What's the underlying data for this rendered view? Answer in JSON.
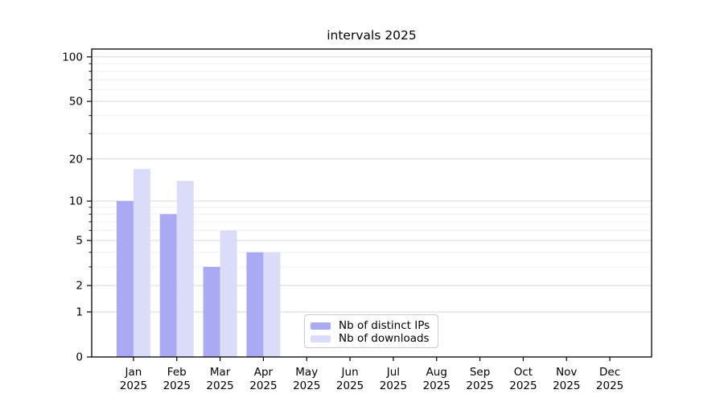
{
  "chart_data": {
    "type": "bar",
    "title": "intervals 2025",
    "months": [
      "Jan",
      "Feb",
      "Mar",
      "Apr",
      "May",
      "Jun",
      "Jul",
      "Aug",
      "Sep",
      "Oct",
      "Nov",
      "Dec"
    ],
    "year_label": "2025",
    "series": [
      {
        "name": "Nb of distinct IPs",
        "color": "#a9a9f4",
        "values": [
          10,
          8,
          3,
          4,
          0,
          0,
          0,
          0,
          0,
          0,
          0,
          0
        ]
      },
      {
        "name": "Nb of downloads",
        "color": "#dadcf9",
        "values": [
          17,
          14,
          6,
          4,
          0,
          0,
          0,
          0,
          0,
          0,
          0,
          0
        ]
      }
    ],
    "y_scale": "symlog-log1p",
    "y_ticks": [
      0,
      1,
      2,
      5,
      10,
      20,
      50,
      100
    ],
    "y_tick_labels": [
      "0",
      "1",
      "2",
      "5",
      "10",
      "20",
      "50",
      "100"
    ],
    "y_minor_ticks": [
      3,
      4,
      6,
      7,
      8,
      9,
      30,
      40,
      60,
      70,
      80,
      90
    ],
    "ylim": [
      0,
      113
    ],
    "grid": "on",
    "legend_position": "inside-bottom-center",
    "colors": {
      "grid_major": "#d9d9d9",
      "grid_minor": "#f0f0f0",
      "spine": "#000000",
      "text": "#000000"
    }
  }
}
